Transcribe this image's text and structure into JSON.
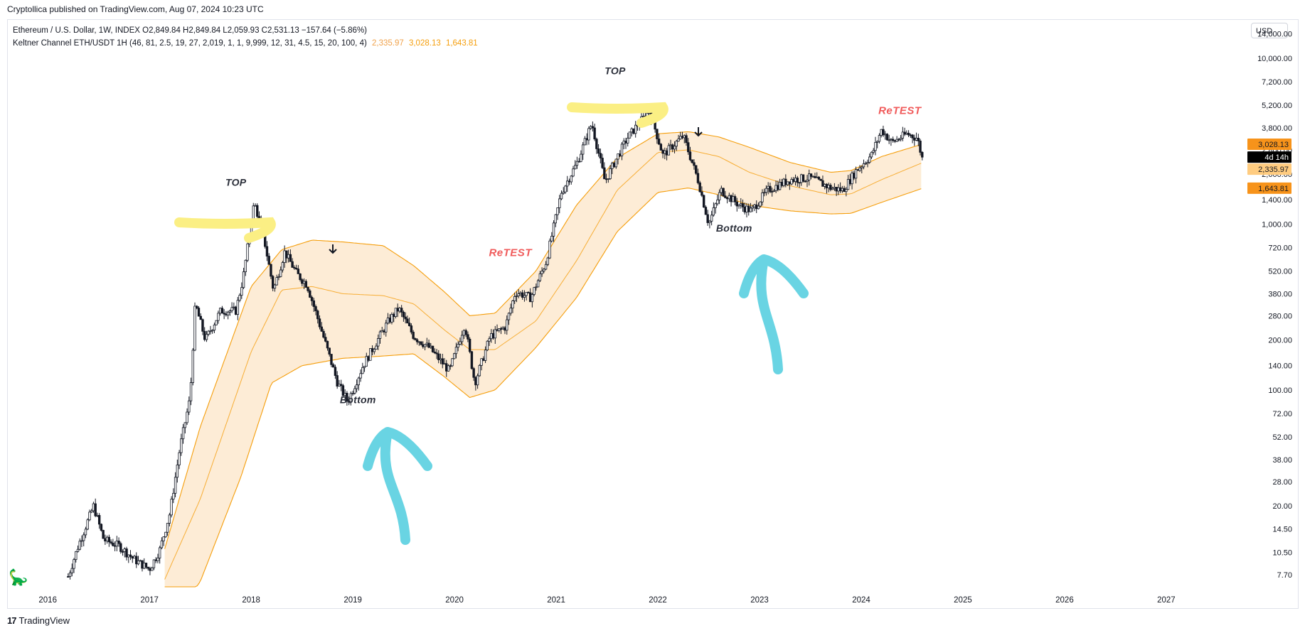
{
  "publisher_line": "Cryptollica published on TradingView.com, Aug 07, 2024 10:23 UTC",
  "legend": {
    "symbol_line": "Ethereum / U.S. Dollar, 1W, INDEX  O2,849.84  H2,849.84  L2,059.93  C2,531.13  −157.64 (−5.86%)",
    "indicator_line": "Keltner Channel ETH/USDT 1H (46, 81, 2.5, 19, 27, 2,019, 1, 1, 9,999, 12, 31, 4.5, 15, 20, 100, 4)",
    "indicator_values": [
      "2,335.97",
      "3,028.13",
      "1,643.81"
    ]
  },
  "currency": "USD",
  "brand": "TradingView",
  "colors": {
    "channel_line": "#f59e0b",
    "channel_fill": "#fde9cf",
    "candle": "#131722",
    "label_upper": "#f7931a",
    "label_middle": "#ffcc80",
    "label_timer": "#000000",
    "retest": "#f05a5a",
    "highlight_yellow": "#fbef84",
    "arrow_cyan": "#69d4e3"
  },
  "chart_data": {
    "type": "candlestick",
    "title": "Ethereum / U.S. Dollar, 1W, INDEX",
    "y_scale": "log",
    "ylim": [
      6.5,
      17000
    ],
    "xlim": [
      2015.6,
      2027.7
    ],
    "y_tick_labels": [
      "14,000.00",
      "10,000.00",
      "7,200.00",
      "5,200.00",
      "3,800.00",
      "2,800.00",
      "2,000.00",
      "1,400.00",
      "1,000.00",
      "720.00",
      "520.00",
      "380.00",
      "280.00",
      "200.00",
      "140.00",
      "100.00",
      "72.00",
      "52.00",
      "38.00",
      "28.00",
      "20.00",
      "14.50",
      "10.50",
      "7.70"
    ],
    "x_tick_labels": [
      "2016",
      "2017",
      "2018",
      "2019",
      "2020",
      "2021",
      "2022",
      "2023",
      "2024",
      "2025",
      "2026",
      "2027"
    ],
    "price_path": [
      [
        2016.2,
        7.5
      ],
      [
        2016.3,
        11.5
      ],
      [
        2016.45,
        20
      ],
      [
        2016.55,
        12.5
      ],
      [
        2016.7,
        11.5
      ],
      [
        2016.85,
        9.5
      ],
      [
        2017.0,
        8.3
      ],
      [
        2017.1,
        10.8
      ],
      [
        2017.2,
        18
      ],
      [
        2017.3,
        45
      ],
      [
        2017.4,
        90
      ],
      [
        2017.45,
        330
      ],
      [
        2017.55,
        200
      ],
      [
        2017.7,
        300
      ],
      [
        2017.85,
        300
      ],
      [
        2017.92,
        470
      ],
      [
        2018.03,
        1350
      ],
      [
        2018.12,
        860
      ],
      [
        2018.22,
        400
      ],
      [
        2018.33,
        680
      ],
      [
        2018.45,
        500
      ],
      [
        2018.55,
        430
      ],
      [
        2018.7,
        220
      ],
      [
        2018.85,
        110
      ],
      [
        2018.95,
        85
      ],
      [
        2019.1,
        140
      ],
      [
        2019.35,
        260
      ],
      [
        2019.45,
        310
      ],
      [
        2019.6,
        210
      ],
      [
        2019.75,
        180
      ],
      [
        2019.95,
        130
      ],
      [
        2020.1,
        250
      ],
      [
        2020.2,
        110
      ],
      [
        2020.35,
        210
      ],
      [
        2020.5,
        240
      ],
      [
        2020.6,
        390
      ],
      [
        2020.75,
        360
      ],
      [
        2020.9,
        590
      ],
      [
        2021.05,
        1550
      ],
      [
        2021.2,
        2300
      ],
      [
        2021.35,
        4050
      ],
      [
        2021.48,
        1800
      ],
      [
        2021.58,
        2400
      ],
      [
        2021.7,
        3300
      ],
      [
        2021.82,
        4100
      ],
      [
        2021.92,
        4800
      ],
      [
        2022.05,
        2600
      ],
      [
        2022.25,
        3400
      ],
      [
        2022.4,
        1800
      ],
      [
        2022.5,
        1000
      ],
      [
        2022.62,
        1600
      ],
      [
        2022.8,
        1300
      ],
      [
        2022.92,
        1200
      ],
      [
        2023.08,
        1600
      ],
      [
        2023.3,
        1850
      ],
      [
        2023.5,
        1900
      ],
      [
        2023.7,
        1650
      ],
      [
        2023.82,
        1600
      ],
      [
        2023.95,
        2100
      ],
      [
        2024.1,
        2600
      ],
      [
        2024.2,
        3700
      ],
      [
        2024.3,
        3100
      ],
      [
        2024.45,
        3500
      ],
      [
        2024.55,
        3300
      ],
      [
        2024.6,
        2500
      ]
    ],
    "keltner_middle": [
      [
        2017.15,
        7.2
      ],
      [
        2017.5,
        22
      ],
      [
        2018.0,
        170
      ],
      [
        2018.3,
        400
      ],
      [
        2018.6,
        420
      ],
      [
        2018.9,
        380
      ],
      [
        2019.3,
        370
      ],
      [
        2019.6,
        330
      ],
      [
        2019.9,
        230
      ],
      [
        2020.15,
        175
      ],
      [
        2020.4,
        175
      ],
      [
        2020.8,
        260
      ],
      [
        2021.2,
        600
      ],
      [
        2021.6,
        1600
      ],
      [
        2022.0,
        2700
      ],
      [
        2022.3,
        2800
      ],
      [
        2022.6,
        2550
      ],
      [
        2022.9,
        2050
      ],
      [
        2023.3,
        1700
      ],
      [
        2023.7,
        1500
      ],
      [
        2023.9,
        1520
      ],
      [
        2024.2,
        1850
      ],
      [
        2024.6,
        2340
      ]
    ],
    "keltner_upper": [
      [
        2017.15,
        11
      ],
      [
        2017.5,
        60
      ],
      [
        2018.0,
        420
      ],
      [
        2018.3,
        700
      ],
      [
        2018.6,
        800
      ],
      [
        2018.9,
        780
      ],
      [
        2019.3,
        740
      ],
      [
        2019.6,
        560
      ],
      [
        2019.9,
        390
      ],
      [
        2020.15,
        280
      ],
      [
        2020.4,
        290
      ],
      [
        2020.8,
        520
      ],
      [
        2021.2,
        1300
      ],
      [
        2021.6,
        2500
      ],
      [
        2022.0,
        3500
      ],
      [
        2022.3,
        3600
      ],
      [
        2022.6,
        3350
      ],
      [
        2022.9,
        2900
      ],
      [
        2023.3,
        2350
      ],
      [
        2023.7,
        2050
      ],
      [
        2023.9,
        2100
      ],
      [
        2024.2,
        2550
      ],
      [
        2024.6,
        3030
      ]
    ],
    "keltner_lower": [
      [
        2017.15,
        3.5
      ],
      [
        2017.5,
        7
      ],
      [
        2017.9,
        30
      ],
      [
        2018.2,
        110
      ],
      [
        2018.5,
        140
      ],
      [
        2018.9,
        155
      ],
      [
        2019.3,
        160
      ],
      [
        2019.6,
        165
      ],
      [
        2019.9,
        120
      ],
      [
        2020.15,
        90
      ],
      [
        2020.4,
        100
      ],
      [
        2020.8,
        180
      ],
      [
        2021.2,
        360
      ],
      [
        2021.6,
        900
      ],
      [
        2022.0,
        1550
      ],
      [
        2022.3,
        1650
      ],
      [
        2022.6,
        1500
      ],
      [
        2022.9,
        1300
      ],
      [
        2023.3,
        1200
      ],
      [
        2023.7,
        1150
      ],
      [
        2023.9,
        1160
      ],
      [
        2024.2,
        1350
      ],
      [
        2024.6,
        1640
      ]
    ],
    "price_labels": [
      {
        "text": "3,028.13",
        "value": 3028.13,
        "color": "#f7931a",
        "text_color": "#131722"
      },
      {
        "text": "4d 14h",
        "value": 2531.13,
        "color": "#000000",
        "text_color": "#ffffff"
      },
      {
        "text": "2,335.97",
        "value": 2335.97,
        "color": "#ffcc80",
        "text_color": "#131722"
      },
      {
        "text": "1,643.81",
        "value": 1643.81,
        "color": "#f7931a",
        "text_color": "#131722"
      }
    ],
    "annotations": [
      {
        "text": "TOP",
        "x": 2017.85,
        "y": 1700,
        "style": "black"
      },
      {
        "text": "TOP",
        "x": 2021.58,
        "y": 8000,
        "style": "black"
      },
      {
        "text": "Bottom",
        "x": 2019.05,
        "y": 83,
        "style": "black"
      },
      {
        "text": "Bottom",
        "x": 2022.75,
        "y": 900,
        "style": "black"
      },
      {
        "text": "ReTEST",
        "x": 2020.55,
        "y": 640,
        "style": "red"
      },
      {
        "text": "ReTEST",
        "x": 2024.38,
        "y": 4600,
        "style": "red"
      }
    ]
  }
}
